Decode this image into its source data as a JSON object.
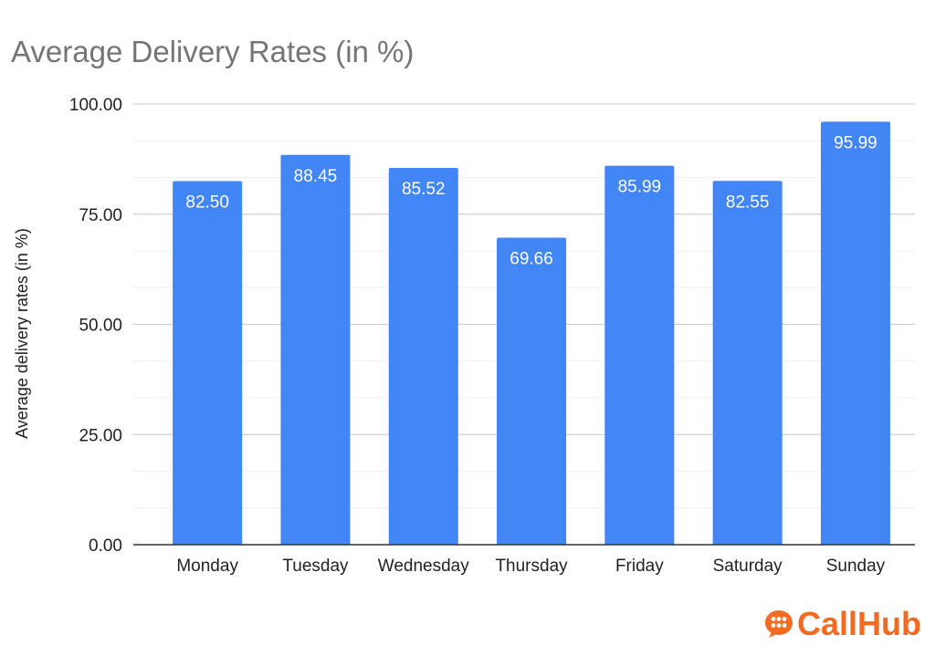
{
  "brand": {
    "name": "CallHub",
    "color": "#f26b21",
    "icon": "chat-bubble-icon"
  },
  "chart_data": {
    "type": "bar",
    "title": "Average Delivery Rates (in %)",
    "xlabel": "",
    "ylabel": "Average delivery rates  (in %)",
    "categories": [
      "Monday",
      "Tuesday",
      "Wednesday",
      "Thursday",
      "Friday",
      "Saturday",
      "Sunday"
    ],
    "values": [
      82.5,
      88.45,
      85.52,
      69.66,
      85.99,
      82.55,
      95.99
    ],
    "data_labels": [
      "82.50",
      "88.45",
      "85.52",
      "69.66",
      "85.99",
      "82.55",
      "95.99"
    ],
    "ylim": [
      0,
      100
    ],
    "yticks": [
      0,
      25,
      50,
      75,
      100
    ],
    "ytick_labels": [
      "0.00",
      "25.00",
      "50.00",
      "75.00",
      "100.00"
    ],
    "minor_grid_step": 8.333,
    "grid": true,
    "legend": "none",
    "bar_color": "#4285f4"
  }
}
